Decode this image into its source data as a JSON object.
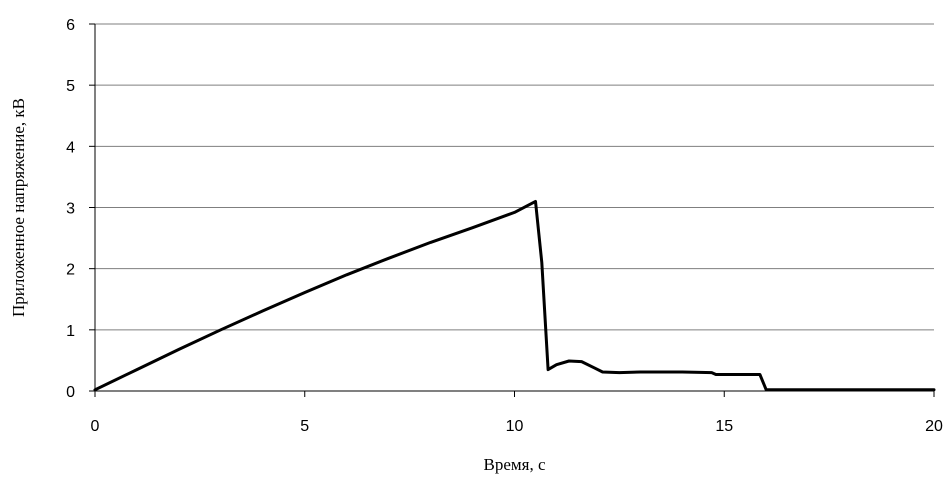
{
  "chart_data": {
    "type": "line",
    "title": "",
    "xlabel": "Время, с",
    "ylabel": "Приложенное напряжение, кВ",
    "xlim": [
      0,
      20
    ],
    "ylim": [
      0,
      6
    ],
    "xticks": [
      "0",
      "5",
      "10",
      "15",
      "20"
    ],
    "yticks": [
      "0",
      "1",
      "2",
      "3",
      "4",
      "5",
      "6"
    ],
    "grid": "horizontal",
    "legend": "none",
    "series": [
      {
        "x": [
          0,
          1,
          2,
          3,
          4,
          5,
          6,
          7,
          8,
          9,
          10,
          10.5,
          10.65,
          10.8,
          11.0,
          11.3,
          11.6,
          11.9,
          12.1,
          12.5,
          13,
          14,
          14.7,
          14.8,
          15.5,
          15.85,
          16.0,
          16.5,
          17,
          18,
          19,
          20
        ],
        "y": [
          0.02,
          0.35,
          0.68,
          1.0,
          1.31,
          1.61,
          1.9,
          2.17,
          2.43,
          2.67,
          2.92,
          3.1,
          2.1,
          0.35,
          0.43,
          0.49,
          0.48,
          0.38,
          0.31,
          0.3,
          0.31,
          0.31,
          0.3,
          0.27,
          0.27,
          0.27,
          0.02,
          0.02,
          0.02,
          0.02,
          0.02,
          0.02
        ]
      }
    ]
  },
  "colors": {
    "line": "#000000",
    "grid": "#7f7f7f",
    "axis": "#000000"
  }
}
